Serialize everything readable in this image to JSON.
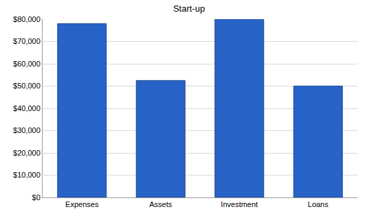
{
  "chart_data": {
    "type": "bar",
    "title": "Start-up",
    "categories": [
      "Expenses",
      "Assets",
      "Investment",
      "Loans"
    ],
    "values": [
      78000,
      52500,
      80000,
      50000
    ],
    "color": "#2762c6",
    "ylim": [
      0,
      80000
    ],
    "yticks": [
      {
        "value": 0,
        "label": "$0"
      },
      {
        "value": 10000,
        "label": "$10,000"
      },
      {
        "value": 20000,
        "label": "$20,000"
      },
      {
        "value": 30000,
        "label": "$30,000"
      },
      {
        "value": 40000,
        "label": "$40,000"
      },
      {
        "value": 50000,
        "label": "$50,000"
      },
      {
        "value": 60000,
        "label": "$60,000"
      },
      {
        "value": 70000,
        "label": "$70,000"
      },
      {
        "value": 80000,
        "label": "$80,000"
      }
    ],
    "grid": true
  }
}
